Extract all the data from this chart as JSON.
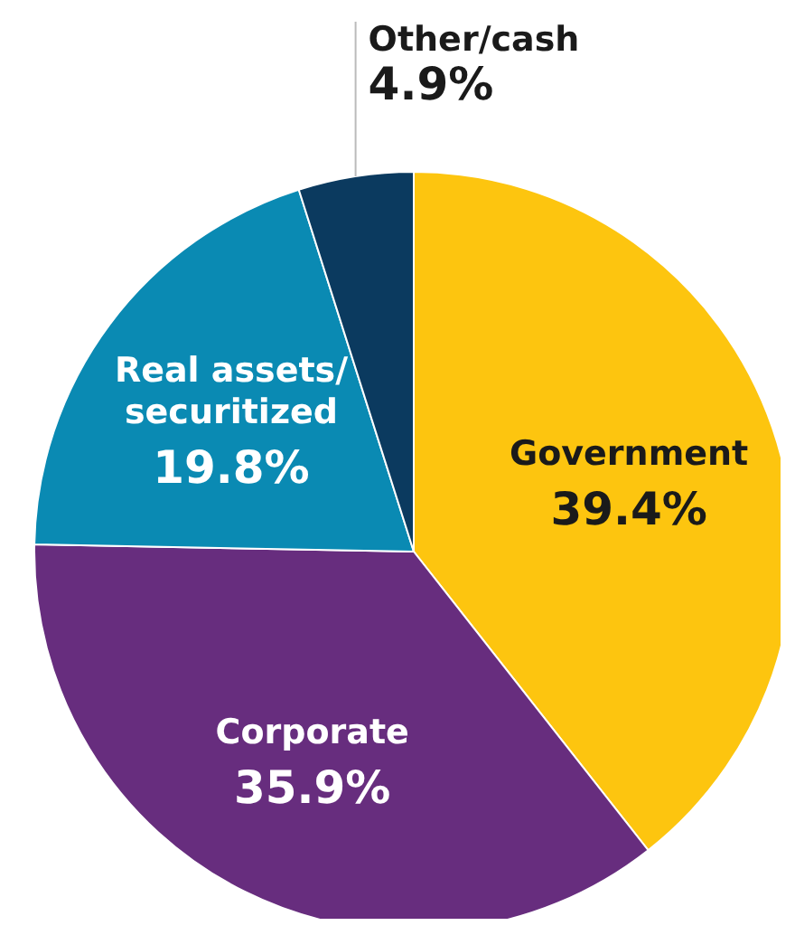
{
  "chart_data": {
    "type": "pie",
    "categories": [
      "Government",
      "Corporate",
      "Real assets/securitized",
      "Other/cash"
    ],
    "values": [
      39.4,
      35.9,
      19.8,
      4.9
    ],
    "value_labels": [
      "39.4%",
      "35.9%",
      "19.8%",
      "4.9%"
    ],
    "colors": [
      "#fdc50f",
      "#672d7e",
      "#0a8ab3",
      "#0b3a5f"
    ],
    "legend": false
  }
}
